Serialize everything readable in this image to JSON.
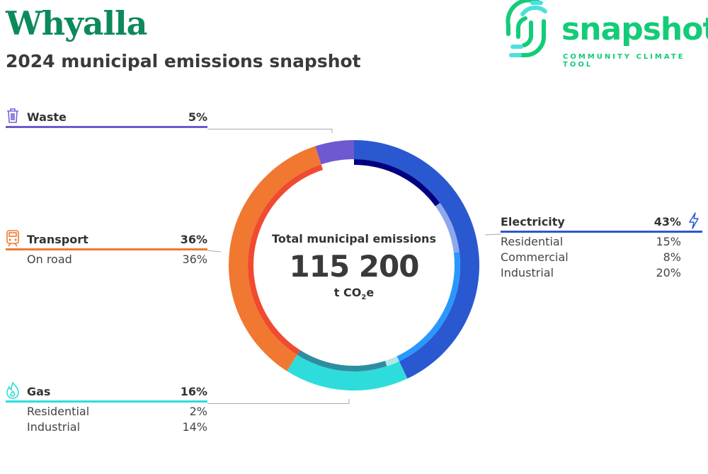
{
  "header": {
    "title": "Whyalla",
    "subtitle": "2024 municipal emissions snapshot"
  },
  "logo": {
    "word": "snapshot",
    "tagline": "COMMUNITY CLIMATE TOOL"
  },
  "center": {
    "label": "Total municipal emissions",
    "value": "115 200",
    "unit_prefix": "t CO",
    "unit_sub": "2",
    "unit_suffix": "e"
  },
  "chart_data": {
    "type": "pie",
    "variant": "nested donut",
    "total": 115200,
    "unit": "t CO2e",
    "series": [
      {
        "name": "Electricity",
        "value": 43,
        "color": "#2a58d0",
        "icon": "lightning-icon",
        "children": [
          {
            "name": "Residential",
            "value": 15,
            "color": "#000080"
          },
          {
            "name": "Commercial",
            "value": 8,
            "color": "#8ea8ee"
          },
          {
            "name": "Industrial",
            "value": 20,
            "color": "#2898ff"
          }
        ]
      },
      {
        "name": "Gas",
        "value": 16,
        "color": "#2edcdc",
        "icon": "flame-icon",
        "children": [
          {
            "name": "Residential",
            "value": 2,
            "color": "#b4e8e8"
          },
          {
            "name": "Industrial",
            "value": 14,
            "color": "#2e8ea0"
          }
        ]
      },
      {
        "name": "Transport",
        "value": 36,
        "color": "#f07830",
        "icon": "train-icon",
        "children": [
          {
            "name": "On road",
            "value": 36,
            "color": "#f04a30"
          }
        ]
      },
      {
        "name": "Waste",
        "value": 5,
        "color": "#7058d0",
        "icon": "trash-icon",
        "children": []
      }
    ]
  },
  "legend": {
    "electricity": {
      "label": "Electricity",
      "pct": "43%",
      "subs": [
        {
          "label": "Residential",
          "pct": "15%"
        },
        {
          "label": "Commercial",
          "pct": "8%"
        },
        {
          "label": "Industrial",
          "pct": "20%"
        }
      ]
    },
    "gas": {
      "label": "Gas",
      "pct": "16%",
      "subs": [
        {
          "label": "Residential",
          "pct": "2%"
        },
        {
          "label": "Industrial",
          "pct": "14%"
        }
      ]
    },
    "transport": {
      "label": "Transport",
      "pct": "36%",
      "subs": [
        {
          "label": "On road",
          "pct": "36%"
        }
      ]
    },
    "waste": {
      "label": "Waste",
      "pct": "5%"
    }
  }
}
